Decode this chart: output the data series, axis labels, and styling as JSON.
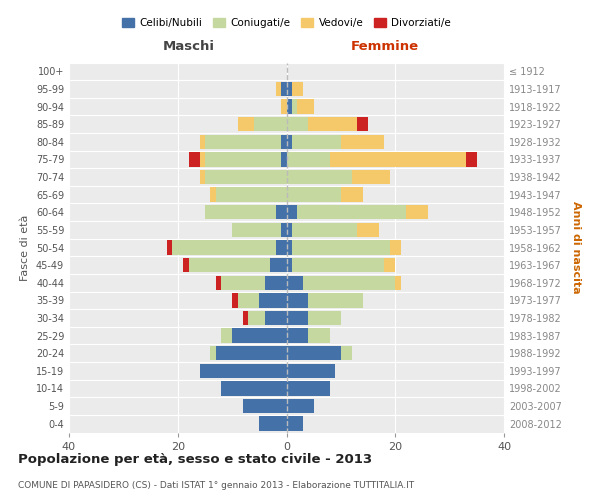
{
  "age_groups": [
    "0-4",
    "5-9",
    "10-14",
    "15-19",
    "20-24",
    "25-29",
    "30-34",
    "35-39",
    "40-44",
    "45-49",
    "50-54",
    "55-59",
    "60-64",
    "65-69",
    "70-74",
    "75-79",
    "80-84",
    "85-89",
    "90-94",
    "95-99",
    "100+"
  ],
  "birth_years": [
    "2008-2012",
    "2003-2007",
    "1998-2002",
    "1993-1997",
    "1988-1992",
    "1983-1987",
    "1978-1982",
    "1973-1977",
    "1968-1972",
    "1963-1967",
    "1958-1962",
    "1953-1957",
    "1948-1952",
    "1943-1947",
    "1938-1942",
    "1933-1937",
    "1928-1932",
    "1923-1927",
    "1918-1922",
    "1913-1917",
    "≤ 1912"
  ],
  "males": {
    "celibi": [
      5,
      8,
      12,
      16,
      13,
      10,
      4,
      5,
      4,
      3,
      2,
      1,
      2,
      0,
      0,
      1,
      1,
      0,
      0,
      1,
      0
    ],
    "coniugati": [
      0,
      0,
      0,
      0,
      1,
      2,
      3,
      4,
      8,
      15,
      19,
      9,
      13,
      13,
      15,
      14,
      14,
      6,
      0,
      0,
      0
    ],
    "vedovi": [
      0,
      0,
      0,
      0,
      0,
      0,
      0,
      0,
      0,
      0,
      0,
      0,
      0,
      1,
      1,
      1,
      1,
      3,
      1,
      1,
      0
    ],
    "divorziati": [
      0,
      0,
      0,
      0,
      0,
      0,
      1,
      1,
      1,
      1,
      1,
      0,
      0,
      0,
      0,
      2,
      0,
      0,
      0,
      0,
      0
    ]
  },
  "females": {
    "nubili": [
      3,
      5,
      8,
      9,
      10,
      4,
      4,
      4,
      3,
      1,
      1,
      1,
      2,
      0,
      0,
      0,
      1,
      0,
      1,
      1,
      0
    ],
    "coniugate": [
      0,
      0,
      0,
      0,
      2,
      4,
      6,
      10,
      17,
      17,
      18,
      12,
      20,
      10,
      12,
      8,
      9,
      4,
      1,
      0,
      0
    ],
    "vedove": [
      0,
      0,
      0,
      0,
      0,
      0,
      0,
      0,
      1,
      2,
      2,
      4,
      4,
      4,
      7,
      25,
      8,
      9,
      3,
      2,
      0
    ],
    "divorziate": [
      0,
      0,
      0,
      0,
      0,
      0,
      0,
      0,
      0,
      0,
      0,
      0,
      0,
      0,
      0,
      2,
      0,
      2,
      0,
      0,
      0
    ]
  },
  "colors": {
    "celibi": "#4472a8",
    "coniugati": "#c5d8a0",
    "vedovi": "#f5c96a",
    "divorziati": "#cc2222"
  },
  "xlim": [
    -40,
    40
  ],
  "xlabel_ticks": [
    -40,
    -20,
    0,
    20,
    40
  ],
  "xlabel_labels": [
    "40",
    "20",
    "0",
    "20",
    "40"
  ],
  "bg_color": "#ebebeb",
  "grid_color": "#ffffff",
  "title": "Popolazione per età, sesso e stato civile - 2013",
  "subtitle": "COMUNE DI PAPASIDERO (CS) - Dati ISTAT 1° gennaio 2013 - Elaborazione TUTTITALIA.IT",
  "ylabel_left": "Fasce di età",
  "ylabel_right": "Anni di nascita",
  "label_maschi": "Maschi",
  "label_femmine": "Femmine",
  "legend_labels": [
    "Celibi/Nubili",
    "Coniugati/e",
    "Vedovi/e",
    "Divorziati/e"
  ]
}
